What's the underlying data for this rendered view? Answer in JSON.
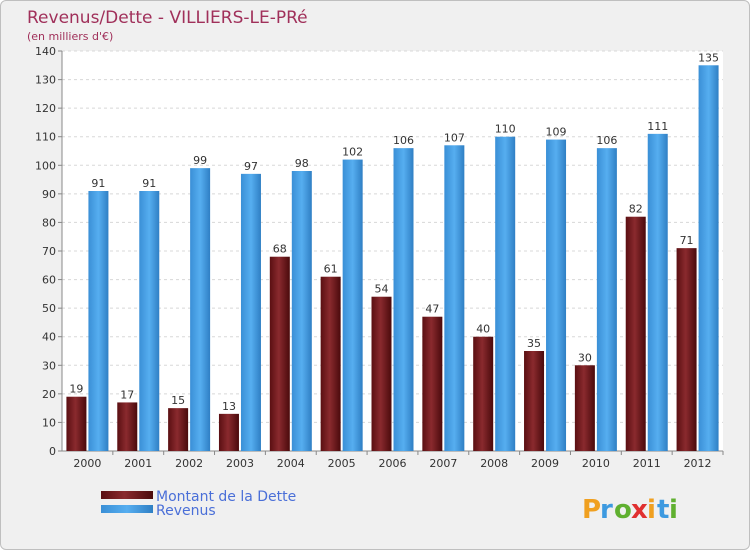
{
  "chart_data": {
    "type": "bar",
    "title": "Revenus/Dette - VILLIERS-LE-PRé",
    "subtitle": "(en milliers d'€)",
    "categories": [
      "2000",
      "2001",
      "2002",
      "2003",
      "2004",
      "2005",
      "2006",
      "2007",
      "2008",
      "2009",
      "2010",
      "2011",
      "2012"
    ],
    "series": [
      {
        "name": "Montant de la Dette",
        "color": "#7a1a1a",
        "values": [
          19,
          17,
          15,
          13,
          68,
          61,
          54,
          47,
          40,
          35,
          30,
          82,
          71
        ]
      },
      {
        "name": "Revenus",
        "color": "#3d9ae0",
        "values": [
          91,
          91,
          99,
          97,
          98,
          102,
          106,
          107,
          110,
          109,
          106,
          111,
          135
        ]
      }
    ],
    "ylim": [
      0,
      140
    ],
    "yticks": [
      0,
      10,
      20,
      30,
      40,
      50,
      60,
      70,
      80,
      90,
      100,
      110,
      120,
      130,
      140
    ],
    "grid": true,
    "legend_position": "bottom-left"
  },
  "branding": {
    "letters": [
      "P",
      "r",
      "o",
      "x",
      "i",
      "t",
      "i"
    ],
    "colors": [
      "#f0a020",
      "#3d9ae0",
      "#60b030",
      "#e03030",
      "#f0a020",
      "#3d9ae0",
      "#60b030"
    ]
  }
}
